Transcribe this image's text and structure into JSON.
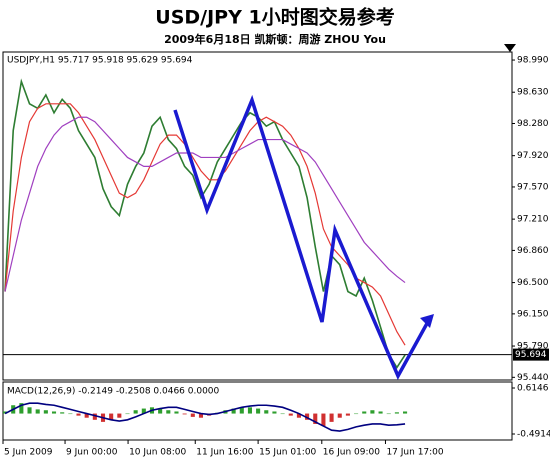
{
  "title": "USD/JPY 1小时图交易参考",
  "subtitle": "2009年6月18日   凯斯顿：周游 ZHOU You",
  "chart_data": [
    {
      "type": "line",
      "info": "USDJPY,H1  95.717 95.918 95.629 95.694",
      "xlim": [
        -0.25,
        62.1
      ],
      "ylim": [
        95.41,
        99.08
      ],
      "yticks": [
        {
          "value": 98.99,
          "label": "98.990"
        },
        {
          "value": 98.63,
          "label": "98.630"
        },
        {
          "value": 98.28,
          "label": "98.280"
        },
        {
          "value": 97.92,
          "label": "97.920"
        },
        {
          "value": 97.57,
          "label": "97.570"
        },
        {
          "value": 97.21,
          "label": "97.210"
        },
        {
          "value": 96.86,
          "label": "96.860"
        },
        {
          "value": 96.5,
          "label": "96.500"
        },
        {
          "value": 96.15,
          "label": "96.150"
        },
        {
          "value": 95.79,
          "label": "95.790"
        },
        {
          "value": 95.44,
          "label": "95.440"
        }
      ],
      "last_price": 95.694,
      "series": [
        {
          "color": "#2e7d32",
          "values": [
            96.4,
            98.2,
            98.75,
            98.5,
            98.45,
            98.6,
            98.4,
            98.55,
            98.45,
            98.2,
            98.05,
            97.9,
            97.55,
            97.35,
            97.25,
            97.6,
            97.8,
            97.95,
            98.25,
            98.35,
            98.1,
            98.0,
            97.8,
            97.7,
            97.45,
            97.6,
            97.85,
            98.0,
            98.15,
            98.3,
            98.4,
            98.35,
            98.25,
            98.3,
            98.1,
            97.95,
            97.8,
            97.45,
            96.9,
            96.4,
            96.8,
            96.7,
            96.4,
            96.35,
            96.55,
            96.3,
            96.0,
            95.7,
            95.55,
            95.69
          ]
        },
        {
          "color": "#e53935",
          "values": [
            96.4,
            97.3,
            97.9,
            98.3,
            98.45,
            98.5,
            98.5,
            98.5,
            98.5,
            98.4,
            98.25,
            98.1,
            97.9,
            97.7,
            97.5,
            97.45,
            97.5,
            97.65,
            97.85,
            98.05,
            98.15,
            98.15,
            98.05,
            97.9,
            97.75,
            97.65,
            97.65,
            97.75,
            97.9,
            98.05,
            98.2,
            98.3,
            98.35,
            98.3,
            98.25,
            98.15,
            98.0,
            97.8,
            97.5,
            97.1,
            96.9,
            96.8,
            96.7,
            96.55,
            96.5,
            96.45,
            96.35,
            96.15,
            95.95,
            95.8
          ]
        },
        {
          "color": "#a040c0",
          "values": [
            96.4,
            96.8,
            97.2,
            97.5,
            97.8,
            98.0,
            98.15,
            98.25,
            98.3,
            98.35,
            98.35,
            98.3,
            98.2,
            98.1,
            98.0,
            97.9,
            97.85,
            97.8,
            97.8,
            97.85,
            97.9,
            97.95,
            97.95,
            97.95,
            97.9,
            97.9,
            97.9,
            97.9,
            97.95,
            98.0,
            98.05,
            98.1,
            98.1,
            98.1,
            98.1,
            98.05,
            98.0,
            97.95,
            97.85,
            97.7,
            97.55,
            97.4,
            97.25,
            97.1,
            96.95,
            96.85,
            96.75,
            96.65,
            96.57,
            96.5
          ]
        }
      ]
    },
    {
      "type": "macd",
      "info": "MACD(12,26,9) -0.2149 -0.2508 0.0466 0.0000",
      "xlim": [
        -0.25,
        62.1
      ],
      "ylim": [
        -0.636,
        0.759
      ],
      "yticks": [
        0.6146,
        -0.4914
      ],
      "xticks": [
        {
          "value": -0.25,
          "label": "5 Jun 2009"
        },
        {
          "value": 7.35,
          "label": "9 Jun 00:00"
        },
        {
          "value": 15.07,
          "label": "10 Jun 08:00"
        },
        {
          "value": 23.3,
          "label": "11 Jun 16:00"
        },
        {
          "value": 31.0,
          "label": "15 Jun 01:00"
        },
        {
          "value": 38.8,
          "label": "16 Jun 09:00"
        },
        {
          "value": 46.6,
          "label": "17 Jun 17:00"
        }
      ],
      "bar_color": "#2e9e2e",
      "bar_color_negative": "#d03030",
      "bars": [
        0.05,
        0.2,
        0.25,
        0.15,
        0.1,
        0.08,
        0.05,
        0.03,
        0.0,
        -0.05,
        -0.1,
        -0.15,
        -0.2,
        -0.15,
        -0.1,
        0.0,
        0.08,
        0.12,
        0.15,
        0.12,
        0.08,
        0.05,
        -0.02,
        -0.08,
        -0.1,
        -0.05,
        0.02,
        0.08,
        0.12,
        0.15,
        0.15,
        0.12,
        0.08,
        0.05,
        0.0,
        -0.05,
        -0.1,
        -0.15,
        -0.25,
        -0.3,
        -0.2,
        -0.1,
        -0.05,
        0.0,
        0.05,
        0.08,
        0.05,
        0.0,
        0.03,
        0.05
      ],
      "series": [
        {
          "color": "#000080",
          "values": [
            0.0,
            0.1,
            0.2,
            0.25,
            0.25,
            0.22,
            0.2,
            0.15,
            0.1,
            0.05,
            0.0,
            -0.05,
            -0.1,
            -0.15,
            -0.18,
            -0.15,
            -0.08,
            0.0,
            0.08,
            0.12,
            0.15,
            0.15,
            0.1,
            0.05,
            0.0,
            -0.02,
            0.0,
            0.05,
            0.1,
            0.15,
            0.18,
            0.2,
            0.2,
            0.18,
            0.15,
            0.08,
            0.0,
            -0.1,
            -0.2,
            -0.3,
            -0.4,
            -0.42,
            -0.38,
            -0.32,
            -0.28,
            -0.25,
            -0.25,
            -0.28,
            -0.27,
            -0.25
          ]
        }
      ]
    }
  ]
}
